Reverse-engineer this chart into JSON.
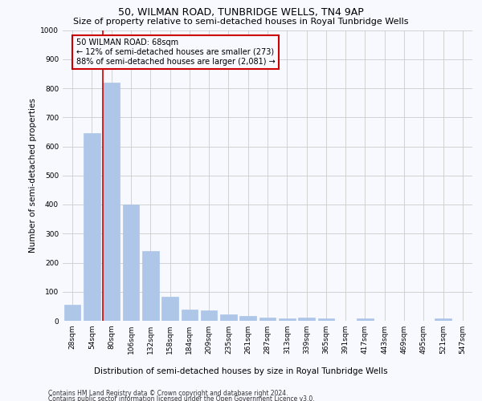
{
  "title": "50, WILMAN ROAD, TUNBRIDGE WELLS, TN4 9AP",
  "subtitle": "Size of property relative to semi-detached houses in Royal Tunbridge Wells",
  "xlabel_bottom": "Distribution of semi-detached houses by size in Royal Tunbridge Wells",
  "ylabel": "Number of semi-detached properties",
  "footnote1": "Contains HM Land Registry data © Crown copyright and database right 2024.",
  "footnote2": "Contains public sector information licensed under the Open Government Licence v3.0.",
  "annotation_line1": "50 WILMAN ROAD: 68sqm",
  "annotation_line2": "← 12% of semi-detached houses are smaller (273)",
  "annotation_line3": "88% of semi-detached houses are larger (2,081) →",
  "bar_color": "#aec6e8",
  "bar_edge_color": "#aec6e8",
  "red_line_color": "#cc0000",
  "background_color": "#f8f8ff",
  "grid_color": "#cccccc",
  "categories": [
    "28sqm",
    "54sqm",
    "80sqm",
    "106sqm",
    "132sqm",
    "158sqm",
    "184sqm",
    "209sqm",
    "235sqm",
    "261sqm",
    "287sqm",
    "313sqm",
    "339sqm",
    "365sqm",
    "391sqm",
    "417sqm",
    "443sqm",
    "469sqm",
    "495sqm",
    "521sqm",
    "547sqm"
  ],
  "values": [
    55,
    645,
    820,
    400,
    240,
    83,
    40,
    37,
    22,
    17,
    10,
    8,
    10,
    8,
    0,
    8,
    0,
    0,
    0,
    8,
    0
  ],
  "ylim": [
    0,
    1000
  ],
  "red_line_x": 1.54,
  "title_fontsize": 9,
  "subtitle_fontsize": 8,
  "axis_label_fontsize": 7.5,
  "tick_fontsize": 6.5,
  "annotation_fontsize": 7,
  "footnote_fontsize": 5.5
}
